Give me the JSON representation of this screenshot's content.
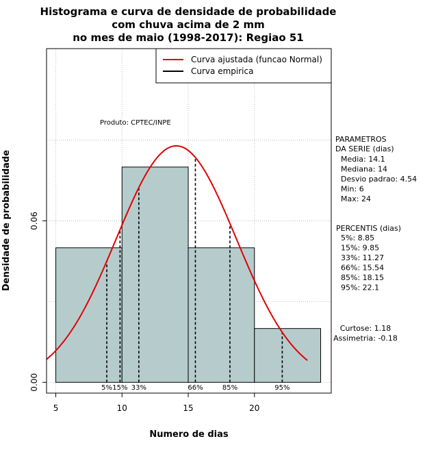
{
  "chart_data": {
    "type": "bar",
    "title": [
      "Histograma e curva de densidade de probabilidade",
      "com chuva acima de 2 mm",
      "no mes de maio (1998-2017): Regiao 51"
    ],
    "xlabel": "Numero de dias",
    "ylabel": "Densidade de probabilidade",
    "xlim": [
      4.3,
      25.8
    ],
    "ylim": [
      -0.004,
      0.124
    ],
    "x_ticks": [
      5,
      10,
      15,
      20
    ],
    "x_tick_labels": [
      "5",
      "10",
      "15",
      "20"
    ],
    "y_ticks": [
      0.0,
      0.06
    ],
    "y_tick_labels": [
      "0.00",
      "0.06"
    ],
    "grid": true,
    "bins": [
      {
        "from": 5,
        "to": 10,
        "density": 0.05
      },
      {
        "from": 10,
        "to": 15,
        "density": 0.08
      },
      {
        "from": 15,
        "to": 20,
        "density": 0.05
      },
      {
        "from": 20,
        "to": 25,
        "density": 0.02
      }
    ],
    "bar_color": "#b6cccc",
    "curve": {
      "name": "Curva ajustada (funcao Normal)",
      "color": "#e00000",
      "mean": 14.1,
      "sd": 4.54,
      "x_from": 4.3,
      "x_to": 24.0
    },
    "empirical": {
      "name": "Curva empirica",
      "color": "#000000"
    },
    "percentile_lines": [
      {
        "label": "5%",
        "x": 8.85
      },
      {
        "label": "15%",
        "x": 9.85
      },
      {
        "label": "33%",
        "x": 11.27
      },
      {
        "label": "66%",
        "x": 15.54
      },
      {
        "label": "85%",
        "x": 18.15
      },
      {
        "label": "95%",
        "x": 22.1
      }
    ],
    "legend_position": "top-right",
    "annotation": "Produto: CPTEC/INPE"
  },
  "side_panel": {
    "params_title": [
      "PARAMETROS",
      "DA SERIE (dias)"
    ],
    "params": [
      "Media: 14.1",
      "Mediana: 14",
      "Desvio padrao: 4.54",
      "Min: 6",
      "Max: 24"
    ],
    "percentis_title": "PERCENTIS (dias)",
    "percentis": [
      "5%: 8.85",
      "15%: 9.85",
      "33%: 11.27",
      "66%: 15.54",
      "85%: 18.15",
      "95%: 22.1"
    ],
    "stats": [
      "Curtose: 1.18",
      "Assimetria: -0.18"
    ]
  }
}
